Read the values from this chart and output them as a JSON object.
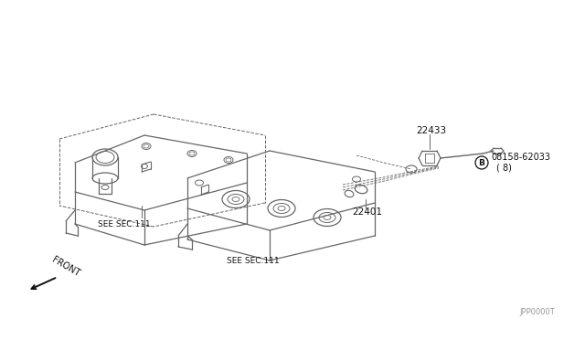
{
  "bg_color": "#ffffff",
  "line_color": "#666666",
  "dark_color": "#111111",
  "diagram_code": "JPP0000T",
  "label_22433": "22433",
  "label_22401": "22401",
  "label_bolt": "08158-62033",
  "label_bolt2": "( 8)",
  "label_B": "B",
  "label_see1": "SEE SEC.111",
  "label_see2": "SEE SEC.111",
  "label_front": "FRONT",
  "fig_width": 6.4,
  "fig_height": 3.72,
  "dpi": 100
}
